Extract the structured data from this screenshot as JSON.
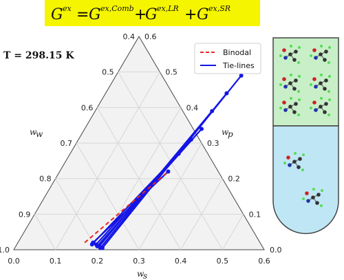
{
  "equation": {
    "lhs": "G",
    "lhs_sup": "ex",
    "equals": "=",
    "terms": [
      {
        "base": "G",
        "sup": "ex,Comb"
      },
      {
        "base": "G",
        "sup": "ex,LR"
      },
      {
        "base": "G",
        "sup": "ex,SR"
      }
    ],
    "plus": "+",
    "background": "#f5f500"
  },
  "temperature_label": "T = 298.15  K",
  "colors": {
    "binodal": "#e8281e",
    "tieline": "#1414e6",
    "grid": "#d6d6d6",
    "triangle_fill": "#f2f2f2",
    "vial_top": "#c8efc8",
    "vial_bottom": "#bfe6f5"
  },
  "vial_icons": [
    "molecule-icon"
  ],
  "chart_data": {
    "type": "scatter",
    "subtype": "ternary",
    "bottom_axis": {
      "label": "w",
      "label_sub": "s",
      "ticks": [
        "0.0",
        "0.1",
        "0.2",
        "0.3",
        "0.4",
        "0.5",
        "0.6"
      ]
    },
    "left_axis": {
      "label": "w",
      "label_sub": "w",
      "ticks": [
        "1.0",
        "0.9",
        "0.8",
        "0.7",
        "0.6",
        "0.5",
        "0.4"
      ]
    },
    "right_axis": {
      "label": "w",
      "label_sub": "p",
      "ticks": [
        "0.0",
        "0.1",
        "0.2",
        "0.3",
        "0.4",
        "0.5",
        "0.6"
      ]
    },
    "range": {
      "component_min": 0.0,
      "component_max": 0.6
    },
    "grid": true,
    "legend": {
      "placement": "top-right",
      "entries": [
        "Binodal",
        "Tie-lines"
      ]
    },
    "binodal": {
      "name": "Binodal",
      "style": "dashed",
      "points": [
        {
          "s": 0.16,
          "p": 0.02
        },
        {
          "s": 0.18,
          "p": 0.06
        },
        {
          "s": 0.2,
          "p": 0.1
        },
        {
          "s": 0.22,
          "p": 0.14
        },
        {
          "s": 0.24,
          "p": 0.18
        },
        {
          "s": 0.26,
          "p": 0.22
        }
      ]
    },
    "tie_lines": {
      "name": "Tie-lines",
      "lines": [
        {
          "end1": {
            "s": 0.18,
            "p": 0.02
          },
          "end2": {
            "s": 0.26,
            "p": 0.22
          }
        },
        {
          "end1": {
            "s": 0.18,
            "p": 0.015
          },
          "end2": {
            "s": 0.26,
            "p": 0.27
          }
        },
        {
          "end1": {
            "s": 0.19,
            "p": 0.015
          },
          "end2": {
            "s": 0.27,
            "p": 0.31
          }
        },
        {
          "end1": {
            "s": 0.195,
            "p": 0.01
          },
          "end2": {
            "s": 0.28,
            "p": 0.34
          }
        },
        {
          "end1": {
            "s": 0.2,
            "p": 0.01
          },
          "end2": {
            "s": 0.28,
            "p": 0.39
          }
        },
        {
          "end1": {
            "s": 0.205,
            "p": 0.005
          },
          "end2": {
            "s": 0.29,
            "p": 0.44
          }
        },
        {
          "end1": {
            "s": 0.21,
            "p": 0.005
          },
          "end2": {
            "s": 0.3,
            "p": 0.49
          }
        }
      ]
    }
  }
}
